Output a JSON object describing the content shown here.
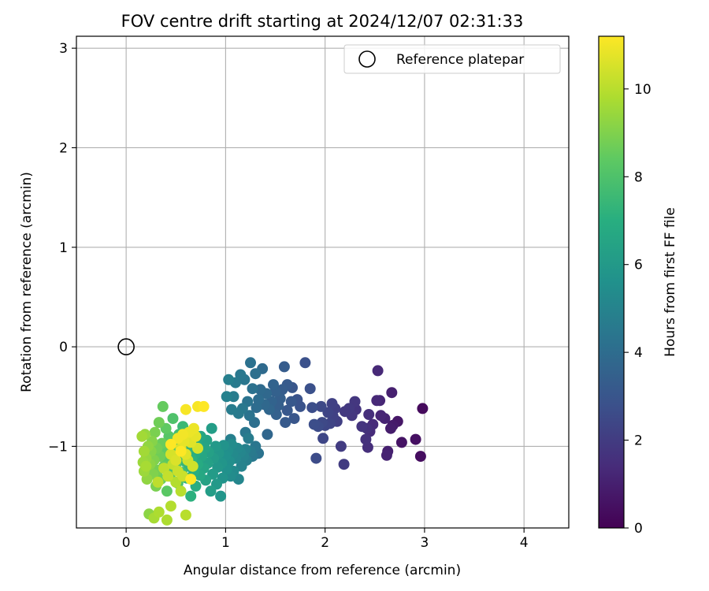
{
  "chart_data": {
    "type": "scatter",
    "title": "FOV centre drift starting at 2024/12/07 02:31:33",
    "xlabel": "Angular distance from reference (arcmin)",
    "ylabel": "Rotation from reference (arcmin)",
    "xlim": [
      -0.5,
      4.45
    ],
    "ylim": [
      -1.82,
      3.12
    ],
    "xticks": [
      0,
      1,
      2,
      3,
      4
    ],
    "xtick_labels": [
      "0",
      "1",
      "2",
      "3",
      "4"
    ],
    "yticks": [
      -1,
      0,
      1,
      2,
      3
    ],
    "ytick_labels": [
      "−1",
      "0",
      "1",
      "2",
      "3"
    ],
    "grid": true,
    "legend": {
      "placement": "top-right",
      "entries": [
        "Reference platepar"
      ]
    },
    "reference_point": {
      "name": "Reference platepar",
      "x": 0,
      "y": 0
    },
    "colorbar": {
      "label": "Hours from first FF file",
      "colormap": "viridis",
      "range": [
        0,
        11.2
      ],
      "ticks": [
        0,
        2,
        4,
        6,
        8,
        10
      ],
      "tick_labels": [
        "0",
        "2",
        "4",
        "6",
        "8",
        "10"
      ]
    },
    "columns": [
      "x",
      "y",
      "hours"
    ],
    "points": [
      [
        2.98,
        -0.62,
        0.3
      ],
      [
        2.96,
        -1.1,
        0.4
      ],
      [
        2.91,
        -0.93,
        0.5
      ],
      [
        2.77,
        -0.96,
        0.6
      ],
      [
        2.73,
        -0.75,
        0.7
      ],
      [
        2.68,
        -0.79,
        0.8
      ],
      [
        2.66,
        -0.82,
        0.9
      ],
      [
        2.67,
        -0.46,
        1.0
      ],
      [
        2.63,
        -1.05,
        1.0
      ],
      [
        2.62,
        -1.09,
        1.1
      ],
      [
        2.6,
        -0.72,
        1.1
      ],
      [
        2.56,
        -0.69,
        1.2
      ],
      [
        2.55,
        -0.54,
        1.2
      ],
      [
        2.53,
        -0.24,
        1.3
      ],
      [
        2.52,
        -0.54,
        1.3
      ],
      [
        2.48,
        -0.78,
        1.4
      ],
      [
        2.45,
        -0.85,
        1.4
      ],
      [
        2.44,
        -0.68,
        1.5
      ],
      [
        2.43,
        -1.01,
        1.5
      ],
      [
        2.42,
        -0.82,
        1.6
      ],
      [
        2.41,
        -0.93,
        1.6
      ],
      [
        2.37,
        -0.8,
        1.7
      ],
      [
        2.31,
        -0.63,
        1.7
      ],
      [
        2.3,
        -0.55,
        1.8
      ],
      [
        2.27,
        -0.69,
        1.8
      ],
      [
        2.24,
        -0.62,
        1.9
      ],
      [
        2.2,
        -0.65,
        1.9
      ],
      [
        2.19,
        -1.18,
        2.0
      ],
      [
        2.16,
        -1.0,
        2.0
      ],
      [
        2.12,
        -0.75,
        2.1
      ],
      [
        2.1,
        -0.62,
        2.1
      ],
      [
        2.08,
        -0.7,
        2.2
      ],
      [
        2.07,
        -0.57,
        2.2
      ],
      [
        2.05,
        -0.77,
        2.3
      ],
      [
        2.03,
        -0.66,
        2.3
      ],
      [
        2.0,
        -0.79,
        2.4
      ],
      [
        1.98,
        -0.92,
        2.4
      ],
      [
        1.97,
        -0.76,
        2.5
      ],
      [
        1.96,
        -0.6,
        2.5
      ],
      [
        1.93,
        -0.8,
        2.6
      ],
      [
        1.91,
        -1.12,
        2.6
      ],
      [
        1.89,
        -0.78,
        2.7
      ],
      [
        1.87,
        -0.61,
        2.7
      ],
      [
        1.85,
        -0.42,
        2.8
      ],
      [
        1.8,
        -0.16,
        2.8
      ],
      [
        1.75,
        -0.6,
        2.9
      ],
      [
        1.72,
        -0.53,
        2.9
      ],
      [
        1.69,
        -0.72,
        3.0
      ],
      [
        1.67,
        -0.41,
        3.0
      ],
      [
        1.66,
        -0.55,
        3.1
      ],
      [
        1.62,
        -0.64,
        3.1
      ],
      [
        1.62,
        -0.38,
        3.2
      ],
      [
        1.6,
        -0.76,
        3.2
      ],
      [
        1.59,
        -0.2,
        3.3
      ],
      [
        1.57,
        -0.43,
        3.3
      ],
      [
        1.55,
        -0.52,
        3.4
      ],
      [
        1.53,
        -0.59,
        3.4
      ],
      [
        1.51,
        -0.68,
        3.5
      ],
      [
        1.5,
        -0.45,
        3.5
      ],
      [
        1.48,
        -0.38,
        3.6
      ],
      [
        1.46,
        -0.55,
        3.6
      ],
      [
        1.44,
        -0.63,
        3.7
      ],
      [
        1.42,
        -0.88,
        3.7
      ],
      [
        1.41,
        -0.47,
        3.8
      ],
      [
        1.39,
        -0.58,
        3.8
      ],
      [
        1.37,
        -0.22,
        3.9
      ],
      [
        1.35,
        -0.43,
        3.9
      ],
      [
        1.33,
        -0.53,
        4.0
      ],
      [
        1.31,
        -0.61,
        4.0
      ],
      [
        1.3,
        -0.27,
        4.1
      ],
      [
        1.29,
        -0.76,
        4.1
      ],
      [
        1.27,
        -0.42,
        4.2
      ],
      [
        1.25,
        -0.16,
        4.2
      ],
      [
        1.24,
        -0.69,
        4.3
      ],
      [
        1.22,
        -0.55,
        4.3
      ],
      [
        1.2,
        -0.86,
        4.4
      ],
      [
        1.19,
        -0.33,
        4.4
      ],
      [
        1.17,
        -0.62,
        4.5
      ],
      [
        1.15,
        -0.28,
        4.5
      ],
      [
        1.13,
        -0.67,
        4.6
      ],
      [
        1.1,
        -0.36,
        4.6
      ],
      [
        1.08,
        -0.5,
        4.7
      ],
      [
        1.06,
        -0.63,
        4.7
      ],
      [
        1.05,
        -0.93,
        4.8
      ],
      [
        1.03,
        -0.33,
        4.8
      ],
      [
        1.01,
        -0.5,
        4.9
      ],
      [
        1.33,
        -1.07,
        4.3
      ],
      [
        1.3,
        -1.0,
        4.4
      ],
      [
        1.27,
        -1.1,
        4.5
      ],
      [
        1.25,
        -1.05,
        4.6
      ],
      [
        1.23,
        -0.92,
        4.7
      ],
      [
        1.21,
        -1.14,
        4.8
      ],
      [
        1.2,
        -1.03,
        4.9
      ],
      [
        1.18,
        -1.1,
        5.0
      ],
      [
        1.16,
        -1.2,
        5.0
      ],
      [
        1.15,
        -1.06,
        5.1
      ],
      [
        1.13,
        -1.33,
        5.1
      ],
      [
        1.12,
        -1.02,
        5.2
      ],
      [
        1.1,
        -1.12,
        5.2
      ],
      [
        1.08,
        -1.25,
        5.3
      ],
      [
        1.07,
        -1.08,
        5.3
      ],
      [
        1.06,
        -0.98,
        5.4
      ],
      [
        1.05,
        -1.3,
        5.4
      ],
      [
        1.04,
        -1.15,
        5.5
      ],
      [
        1.02,
        -1.05,
        5.5
      ],
      [
        1.01,
        -1.23,
        5.6
      ],
      [
        1.0,
        -1.1,
        5.6
      ],
      [
        0.98,
        -0.99,
        5.7
      ],
      [
        0.97,
        -1.32,
        5.7
      ],
      [
        0.96,
        -1.17,
        5.8
      ],
      [
        0.95,
        -1.5,
        5.8
      ],
      [
        0.93,
        -1.07,
        5.9
      ],
      [
        0.92,
        -1.21,
        5.9
      ],
      [
        0.91,
        -1.38,
        6.0
      ],
      [
        0.9,
        -1.0,
        6.0
      ],
      [
        0.88,
        -1.12,
        6.1
      ],
      [
        0.87,
        -1.28,
        6.1
      ],
      [
        0.86,
        -0.82,
        6.2
      ],
      [
        0.85,
        -1.45,
        6.2
      ],
      [
        0.83,
        -1.06,
        6.3
      ],
      [
        0.82,
        -1.17,
        6.3
      ],
      [
        0.81,
        -0.94,
        6.4
      ],
      [
        0.8,
        -1.34,
        6.4
      ],
      [
        0.79,
        -1.02,
        6.5
      ],
      [
        0.78,
        -1.22,
        6.5
      ],
      [
        0.76,
        -1.1,
        6.6
      ],
      [
        0.75,
        -0.9,
        6.6
      ],
      [
        0.74,
        -1.29,
        6.7
      ],
      [
        0.73,
        -1.04,
        6.7
      ],
      [
        0.72,
        -1.18,
        6.8
      ],
      [
        0.71,
        -0.98,
        6.8
      ],
      [
        0.7,
        -1.4,
        6.9
      ],
      [
        0.69,
        -1.08,
        6.9
      ],
      [
        0.68,
        -1.25,
        7.0
      ],
      [
        0.67,
        -0.93,
        7.0
      ],
      [
        0.66,
        -1.13,
        7.1
      ],
      [
        0.65,
        -1.5,
        7.1
      ],
      [
        0.64,
        -0.86,
        7.2
      ],
      [
        0.63,
        -1.2,
        7.2
      ],
      [
        0.62,
        -1.03,
        7.3
      ],
      [
        0.61,
        -1.32,
        7.3
      ],
      [
        0.6,
        -0.95,
        7.4
      ],
      [
        0.59,
        -1.15,
        7.4
      ],
      [
        0.58,
        -1.07,
        7.5
      ],
      [
        0.57,
        -0.8,
        7.5
      ],
      [
        0.56,
        -1.26,
        7.6
      ],
      [
        0.55,
        -1.0,
        7.6
      ],
      [
        0.54,
        -1.1,
        7.7
      ],
      [
        0.53,
        -0.88,
        7.7
      ],
      [
        0.52,
        -1.37,
        7.8
      ],
      [
        0.51,
        -1.05,
        7.8
      ],
      [
        0.5,
        -1.18,
        7.9
      ],
      [
        0.49,
        -0.95,
        7.9
      ],
      [
        0.48,
        -1.23,
        8.0
      ],
      [
        0.47,
        -0.72,
        8.0
      ],
      [
        0.46,
        -1.12,
        8.1
      ],
      [
        0.45,
        -1.02,
        8.1
      ],
      [
        0.44,
        -1.3,
        8.2
      ],
      [
        0.43,
        -0.9,
        8.2
      ],
      [
        0.42,
        -1.16,
        8.3
      ],
      [
        0.41,
        -1.45,
        8.3
      ],
      [
        0.4,
        -0.82,
        8.4
      ],
      [
        0.39,
        -1.06,
        8.4
      ],
      [
        0.38,
        -1.2,
        8.5
      ],
      [
        0.37,
        -0.6,
        8.5
      ],
      [
        0.36,
        -0.97,
        8.6
      ],
      [
        0.35,
        -1.33,
        8.6
      ],
      [
        0.34,
        -1.1,
        8.7
      ],
      [
        0.33,
        -0.76,
        8.7
      ],
      [
        0.32,
        -1.24,
        8.8
      ],
      [
        0.31,
        -1.02,
        8.8
      ],
      [
        0.3,
        -1.4,
        8.9
      ],
      [
        0.29,
        -0.86,
        8.9
      ],
      [
        0.28,
        -1.14,
        9.0
      ],
      [
        0.27,
        -1.28,
        9.0
      ],
      [
        0.26,
        -0.95,
        9.1
      ],
      [
        0.25,
        -1.05,
        9.1
      ],
      [
        0.24,
        -1.18,
        9.2
      ],
      [
        0.23,
        -1.68,
        9.2
      ],
      [
        0.22,
        -1.0,
        9.3
      ],
      [
        0.21,
        -1.33,
        9.3
      ],
      [
        0.2,
        -1.12,
        9.4
      ],
      [
        0.19,
        -0.88,
        9.4
      ],
      [
        0.18,
        -1.25,
        9.5
      ],
      [
        0.17,
        -1.16,
        9.5
      ],
      [
        0.16,
        -0.9,
        9.6
      ],
      [
        0.18,
        -1.05,
        9.6
      ],
      [
        0.2,
        -1.2,
        9.7
      ],
      [
        0.28,
        -1.72,
        9.7
      ],
      [
        0.33,
        -1.66,
        9.8
      ],
      [
        0.41,
        -1.74,
        9.8
      ],
      [
        0.45,
        -1.6,
        9.9
      ],
      [
        0.5,
        -1.36,
        9.9
      ],
      [
        0.55,
        -1.45,
        10.0
      ],
      [
        0.6,
        -1.69,
        10.0
      ],
      [
        0.32,
        -1.36,
        10.1
      ],
      [
        0.38,
        -1.22,
        10.1
      ],
      [
        0.42,
        -1.3,
        10.2
      ],
      [
        0.47,
        -1.18,
        10.2
      ],
      [
        0.52,
        -1.25,
        10.3
      ],
      [
        0.57,
        -1.3,
        10.3
      ],
      [
        0.62,
        -1.14,
        10.4
      ],
      [
        0.67,
        -1.2,
        10.4
      ],
      [
        0.72,
        -1.02,
        10.5
      ],
      [
        0.45,
        -1.08,
        10.5
      ],
      [
        0.5,
        -1.14,
        10.6
      ],
      [
        0.55,
        -1.02,
        10.6
      ],
      [
        0.6,
        -1.08,
        10.7
      ],
      [
        0.65,
        -0.96,
        10.7
      ],
      [
        0.7,
        -0.9,
        10.8
      ],
      [
        0.58,
        -0.95,
        10.8
      ],
      [
        0.63,
        -0.86,
        10.9
      ],
      [
        0.68,
        -0.82,
        10.9
      ],
      [
        0.52,
        -0.92,
        11.0
      ],
      [
        0.57,
        -0.88,
        11.0
      ],
      [
        0.6,
        -0.63,
        11.1
      ],
      [
        0.72,
        -0.6,
        11.1
      ],
      [
        0.78,
        -0.6,
        11.2
      ],
      [
        0.65,
        -1.33,
        11.2
      ],
      [
        0.45,
        -0.98,
        11.2
      ],
      [
        0.55,
        -1.05,
        11.2
      ]
    ]
  }
}
